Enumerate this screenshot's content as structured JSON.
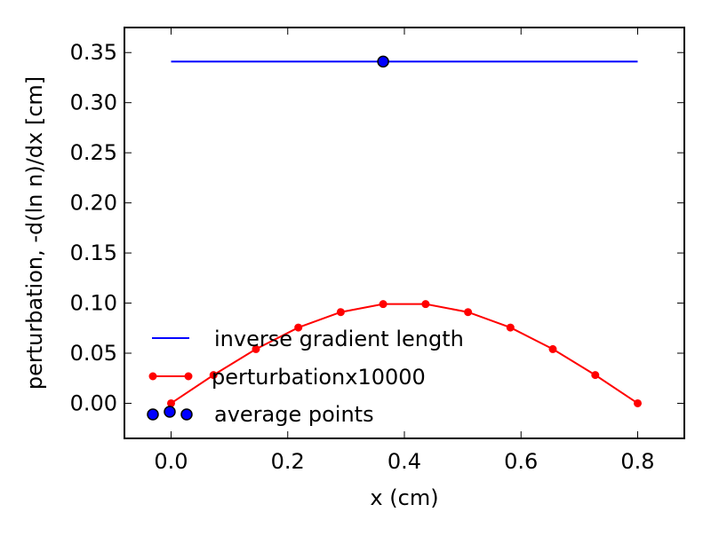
{
  "chart_data": {
    "type": "line",
    "title": "",
    "xlabel": "x (cm)",
    "ylabel": "perturbation, -d(ln n)/dx [cm]",
    "xlim": [
      -0.08,
      0.88
    ],
    "ylim": [
      -0.035,
      0.375
    ],
    "xticks": [
      0.0,
      0.2,
      0.4,
      0.6,
      0.8
    ],
    "xtick_labels": [
      "0.0",
      "0.2",
      "0.4",
      "0.6",
      "0.8"
    ],
    "yticks": [
      0.0,
      0.05,
      0.1,
      0.15,
      0.2,
      0.25,
      0.3,
      0.35
    ],
    "ytick_labels": [
      "0.00",
      "0.05",
      "0.10",
      "0.15",
      "0.20",
      "0.25",
      "0.30",
      "0.35"
    ],
    "grid": false,
    "legend_position": "bottom-left",
    "series": [
      {
        "name": "inverse gradient length",
        "color": "#0000ff",
        "style": "line",
        "x": [
          0.0,
          0.8
        ],
        "y": [
          0.341,
          0.341
        ]
      },
      {
        "name": "perturbationx10000",
        "color": "#ff0000",
        "style": "line-markers",
        "x": [
          0.0,
          0.0727,
          0.1455,
          0.2182,
          0.2909,
          0.3636,
          0.4364,
          0.5091,
          0.5818,
          0.6545,
          0.7273,
          0.8
        ],
        "y": [
          0.0,
          0.0282,
          0.0541,
          0.0756,
          0.091,
          0.099,
          0.099,
          0.091,
          0.0756,
          0.0541,
          0.0282,
          0.0
        ]
      },
      {
        "name": "average points",
        "color": "#0000ff",
        "style": "markers",
        "x": [
          0.3636
        ],
        "y": [
          0.341
        ]
      }
    ]
  }
}
